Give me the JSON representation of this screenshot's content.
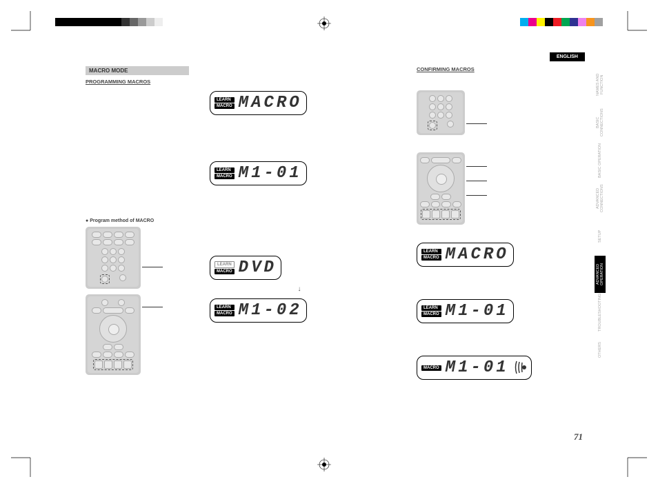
{
  "crop_color": "#000000",
  "colorbar_top_left": [
    "#000000",
    "#000000",
    "#000000",
    "#000000",
    "#000000",
    "#000000",
    "#000000",
    "#000000",
    "#333333",
    "#666666",
    "#999999",
    "#cccccc",
    "#eeeeee",
    "#ffffff"
  ],
  "colorbar_top_right": [
    "#00aeef",
    "#ec008c",
    "#fff200",
    "#000000",
    "#ed1c24",
    "#00a651",
    "#2e3192",
    "#ee82ee",
    "#f7941d",
    "#a0a0a0"
  ],
  "language_tab": "ENGLISH",
  "side_tabs": [
    {
      "l1": "NAMES AND",
      "l2": "FUNCTION",
      "active": false
    },
    {
      "l1": "BASIC",
      "l2": "CONNECTIONS",
      "active": false
    },
    {
      "l1": "BASIC OPERATION",
      "l2": "",
      "active": false
    },
    {
      "l1": "ADVANCED",
      "l2": "CONNECTIONS",
      "active": false
    },
    {
      "l1": "SETUP",
      "l2": "",
      "active": false
    },
    {
      "l1": "ADVANCED",
      "l2": "OPERATION",
      "active": true
    },
    {
      "l1": "TROUBLESHOOTING",
      "l2": "",
      "active": false
    },
    {
      "l1": "OTHERS",
      "l2": "",
      "active": false
    }
  ],
  "section_title": "MACRO MODE",
  "subsection_left": "PROGRAMMING MACROS",
  "subsection_right": "CONFIRMING MACROS",
  "bullet_text": "Program method of MACRO",
  "lcd_label_learn": "LEARN",
  "lcd_label_macro": "MACRO",
  "lcd1_text": "MACRO",
  "lcd2_text": "M1-01",
  "lcd3_text": "DVD",
  "lcd4_text": "M1-02",
  "lcd5_text": "MACRO",
  "lcd6_text": "M1-01",
  "lcd7_text": "M1-01",
  "page_number": "71"
}
